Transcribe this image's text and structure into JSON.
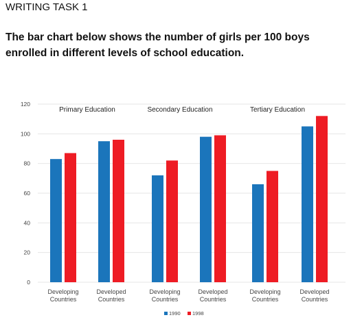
{
  "header": {
    "task": "WRITING TASK 1",
    "prompt": "The bar chart below shows the number of girls per 100 boys enrolled in different levels of school education."
  },
  "colors": {
    "series_1990": "#1b75bb",
    "series_1998": "#ee1c24",
    "grid": "#e6e6e6"
  },
  "chart_data": {
    "type": "bar",
    "categories": [
      "Developing Countries",
      "Developed Countries",
      "Developing Countries",
      "Developed Countries",
      "Developing Countries",
      "Developed Countries"
    ],
    "groups": [
      "Primary Education",
      "Secondary Education",
      "Tertiary Education"
    ],
    "series": [
      {
        "name": "1990",
        "values": [
          83,
          95,
          72,
          98,
          66,
          105
        ]
      },
      {
        "name": "1998",
        "values": [
          87,
          96,
          82,
          99,
          75,
          112
        ]
      }
    ],
    "yticks": [
      0,
      20,
      40,
      60,
      80,
      100,
      120
    ],
    "ylim": [
      0,
      120
    ],
    "grid": true,
    "legend_position": "bottom-center"
  }
}
